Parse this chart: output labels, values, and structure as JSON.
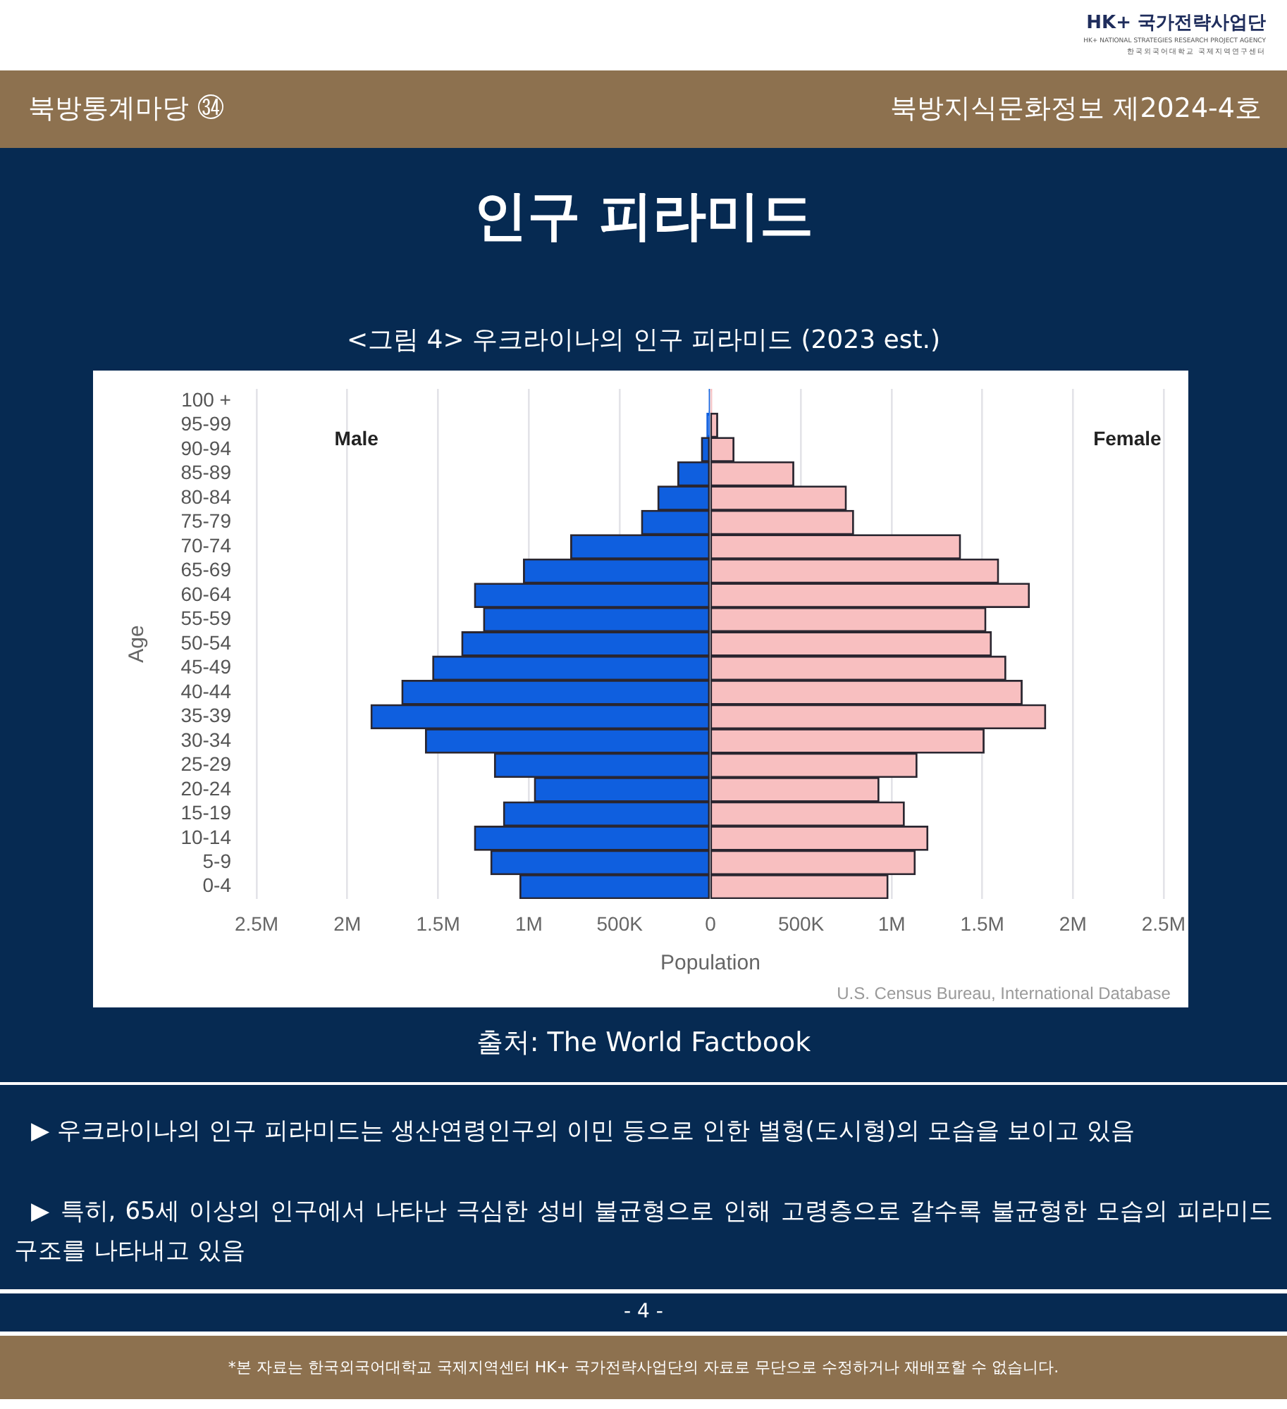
{
  "chart_data": [
    {
      "type": "bar",
      "orientation": "horizontal",
      "grid": "x",
      "title": "인구 피라미드",
      "subtitle": "<그림 4> 우크라이나의 인구 피라미드 (2023 est.)",
      "xlabel": "Population",
      "ylabel": "Age",
      "categories": [
        "100 +",
        "95-99",
        "90-94",
        "85-89",
        "80-84",
        "75-79",
        "70-74",
        "65-69",
        "60-64",
        "55-59",
        "50-54",
        "45-49",
        "40-44",
        "35-39",
        "30-34",
        "25-29",
        "20-24",
        "15-19",
        "10-14",
        "5-9",
        "0-4"
      ],
      "series": [
        {
          "name": "Male",
          "color": "#0f5fdf",
          "values": [
            5000,
            20000,
            50000,
            180000,
            290000,
            380000,
            770000,
            1030000,
            1300000,
            1250000,
            1370000,
            1530000,
            1700000,
            1870000,
            1570000,
            1190000,
            970000,
            1140000,
            1300000,
            1210000,
            1050000
          ]
        }
      ],
      "xlim": [
        2500000,
        0
      ],
      "xticks": [
        {
          "value": 2500000,
          "label": "2.5M"
        },
        {
          "value": 2000000,
          "label": "2M"
        },
        {
          "value": 1500000,
          "label": "1.5M"
        },
        {
          "value": 1000000,
          "label": "1M"
        },
        {
          "value": 500000,
          "label": "500K"
        },
        0
      ],
      "annotations": [
        "HK+ 국가전략사업단",
        "HK+ NATIONAL STRATEGIES RESEARCH PROJECT AGENCY",
        "한국외국어대학교 국제지역연구센터",
        "북방통계마당 ㉞",
        "북방지식문화정보 제2024-4호",
        "출처: The World Factbook",
        "▶ 우크라이나의 인구 피라미드는 생산연령인구의 이민 등으로 인한 별형(도시형)의 모습을 보이고 있음",
        "▶ 특히, 65세 이상의 인구에서 나타난 극심한 성비 불균형으로 인해 고령층으로 갈수록 불균형한 모습의 피라미드 구조를 나타내고 있음",
        "- 4 -",
        "*본 자료는 한국외국어대학교 국제지역센터 HK+ 국가전략사업단의 자료로 무단으로 수정하거나 재배포할 수 없습니다."
      ]
    },
    {
      "type": "bar",
      "orientation": "horizontal",
      "grid": "x",
      "tick_labels": "x",
      "categories": [
        null,
        null,
        null,
        null,
        null,
        null,
        null,
        null,
        null,
        null,
        null,
        null,
        null,
        null,
        null,
        null,
        null,
        null,
        null,
        null,
        null
      ],
      "series": [
        {
          "name": "Female",
          "color": "#f8bfc0",
          "values": [
            5000,
            40000,
            130000,
            460000,
            750000,
            790000,
            1380000,
            1590000,
            1760000,
            1520000,
            1550000,
            1630000,
            1720000,
            1850000,
            1510000,
            1140000,
            930000,
            1070000,
            1200000,
            1130000,
            980000
          ]
        }
      ],
      "xlim": [
        0,
        2500000
      ],
      "xticks": [
        {
          "value": 500000,
          "label": "500K"
        },
        {
          "value": 1000000,
          "label": "1M"
        },
        {
          "value": 1500000,
          "label": "1.5M"
        },
        {
          "value": 2000000,
          "label": "2M"
        },
        {
          "value": 2500000,
          "label": "2.5M"
        }
      ],
      "annotations": [
        "U.S. Census Bureau, International Database"
      ]
    }
  ]
}
